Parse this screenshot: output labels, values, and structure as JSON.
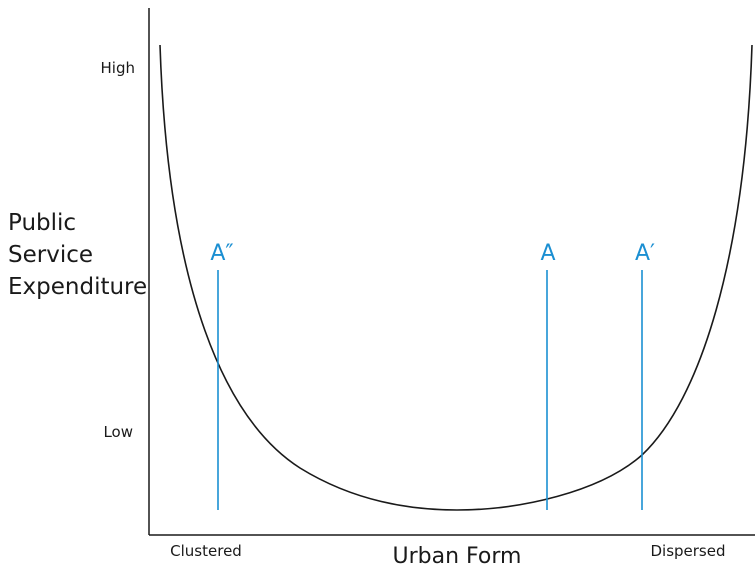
{
  "y_axis": {
    "title_lines": [
      "Public",
      "Service",
      "Expenditure"
    ],
    "high": "High",
    "low": "Low"
  },
  "x_axis": {
    "title": "Urban Form",
    "left": "Clustered",
    "right": "Dispersed"
  },
  "markers": [
    {
      "label": "A″"
    },
    {
      "label": "A"
    },
    {
      "label": "A′"
    }
  ]
}
